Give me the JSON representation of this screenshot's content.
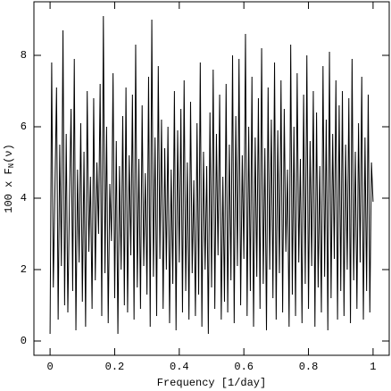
{
  "chart_data": {
    "type": "line",
    "xlabel": "Frequency [1/day]",
    "ylabel": {
      "text": "100 x F",
      "sub": "N",
      "after": "(ν)"
    },
    "xlim": [
      -0.05,
      1.05
    ],
    "ylim": [
      -0.4,
      9.5
    ],
    "xticks": [
      0,
      0.2,
      0.4,
      0.6,
      0.8,
      1
    ],
    "yticks": [
      0,
      2,
      4,
      6,
      8
    ],
    "grid": false,
    "series": [
      {
        "color": "#000000",
        "x": [
          0,
          0.005,
          0.01,
          0.015,
          0.02,
          0.025,
          0.03,
          0.035,
          0.04,
          0.045,
          0.05,
          0.055,
          0.06,
          0.065,
          0.07,
          0.075,
          0.08,
          0.085,
          0.09,
          0.095,
          0.1,
          0.105,
          0.11,
          0.115,
          0.12,
          0.125,
          0.13,
          0.135,
          0.14,
          0.145,
          0.15,
          0.155,
          0.16,
          0.165,
          0.17,
          0.175,
          0.18,
          0.185,
          0.19,
          0.195,
          0.2,
          0.205,
          0.21,
          0.215,
          0.22,
          0.225,
          0.23,
          0.235,
          0.24,
          0.245,
          0.25,
          0.255,
          0.26,
          0.265,
          0.27,
          0.275,
          0.28,
          0.285,
          0.29,
          0.295,
          0.3,
          0.305,
          0.31,
          0.315,
          0.32,
          0.325,
          0.33,
          0.335,
          0.34,
          0.345,
          0.35,
          0.355,
          0.36,
          0.365,
          0.37,
          0.375,
          0.38,
          0.385,
          0.39,
          0.395,
          0.4,
          0.405,
          0.41,
          0.415,
          0.42,
          0.425,
          0.43,
          0.435,
          0.44,
          0.445,
          0.45,
          0.455,
          0.46,
          0.465,
          0.47,
          0.475,
          0.48,
          0.485,
          0.49,
          0.495,
          0.5,
          0.505,
          0.51,
          0.515,
          0.52,
          0.525,
          0.53,
          0.535,
          0.54,
          0.545,
          0.55,
          0.555,
          0.56,
          0.565,
          0.57,
          0.575,
          0.58,
          0.585,
          0.59,
          0.595,
          0.6,
          0.605,
          0.61,
          0.615,
          0.62,
          0.625,
          0.63,
          0.635,
          0.64,
          0.645,
          0.65,
          0.655,
          0.66,
          0.665,
          0.67,
          0.675,
          0.68,
          0.685,
          0.69,
          0.695,
          0.7,
          0.705,
          0.71,
          0.715,
          0.72,
          0.725,
          0.73,
          0.735,
          0.74,
          0.745,
          0.75,
          0.755,
          0.76,
          0.765,
          0.77,
          0.775,
          0.78,
          0.785,
          0.79,
          0.795,
          0.8,
          0.805,
          0.81,
          0.815,
          0.82,
          0.825,
          0.83,
          0.835,
          0.84,
          0.845,
          0.85,
          0.855,
          0.86,
          0.865,
          0.87,
          0.875,
          0.88,
          0.885,
          0.89,
          0.895,
          0.9,
          0.905,
          0.91,
          0.915,
          0.92,
          0.925,
          0.93,
          0.935,
          0.94,
          0.945,
          0.95,
          0.955,
          0.96,
          0.965,
          0.97,
          0.975,
          0.98,
          0.985,
          0.99,
          0.995,
          1
        ],
        "values": [
          0.2,
          7.8,
          1.5,
          4.2,
          7.1,
          0.6,
          5.5,
          2.1,
          8.7,
          1.0,
          5.8,
          0.8,
          3.9,
          6.5,
          1.4,
          7.9,
          0.3,
          4.8,
          2.2,
          6.1,
          1.1,
          5.3,
          0.4,
          7.0,
          2.5,
          4.6,
          0.9,
          6.8,
          1.7,
          5.0,
          3.0,
          7.2,
          0.7,
          9.1,
          1.9,
          6.0,
          0.5,
          4.4,
          2.8,
          7.5,
          1.2,
          5.6,
          0.2,
          4.9,
          2.0,
          6.3,
          1.0,
          7.1,
          0.8,
          5.2,
          2.4,
          6.9,
          0.6,
          8.3,
          1.5,
          5.1,
          0.9,
          6.6,
          2.1,
          4.7,
          1.3,
          7.4,
          0.4,
          9.0,
          1.8,
          5.7,
          0.7,
          7.7,
          2.3,
          6.2,
          0.9,
          5.4,
          2.0,
          6.0,
          0.5,
          4.8,
          1.6,
          7.0,
          0.3,
          5.9,
          2.2,
          6.5,
          0.8,
          7.3,
          1.4,
          5.0,
          0.6,
          6.7,
          1.9,
          4.5,
          0.7,
          6.1,
          1.3,
          7.8,
          0.4,
          5.3,
          2.0,
          4.9,
          0.2,
          6.4,
          1.5,
          7.6,
          0.9,
          5.8,
          2.4,
          6.9,
          0.6,
          4.6,
          1.1,
          7.2,
          0.8,
          5.5,
          1.7,
          8.0,
          0.5,
          6.3,
          2.1,
          7.9,
          1.0,
          5.2,
          2.3,
          8.6,
          0.7,
          6.0,
          1.4,
          7.4,
          0.4,
          5.7,
          1.8,
          6.8,
          0.9,
          8.2,
          1.6,
          5.4,
          0.3,
          7.1,
          2.0,
          6.2,
          1.2,
          7.8,
          0.6,
          5.9,
          1.9,
          7.3,
          0.8,
          6.5,
          2.5,
          4.8,
          0.4,
          8.3,
          1.3,
          6.0,
          0.7,
          7.5,
          2.2,
          5.1,
          0.5,
          6.9,
          1.6,
          8.0,
          0.9,
          5.6,
          2.1,
          7.0,
          0.4,
          6.4,
          1.5,
          4.9,
          0.8,
          7.7,
          1.8,
          6.2,
          0.3,
          8.1,
          1.2,
          5.8,
          2.3,
          7.3,
          0.6,
          6.6,
          1.4,
          7.0,
          0.7,
          5.5,
          2.0,
          6.8,
          0.5,
          7.9,
          1.7,
          5.3,
          0.9,
          6.1,
          2.2,
          7.4,
          0.6,
          5.7,
          1.4,
          6.9,
          0.8,
          5.0,
          3.9
        ]
      }
    ]
  }
}
